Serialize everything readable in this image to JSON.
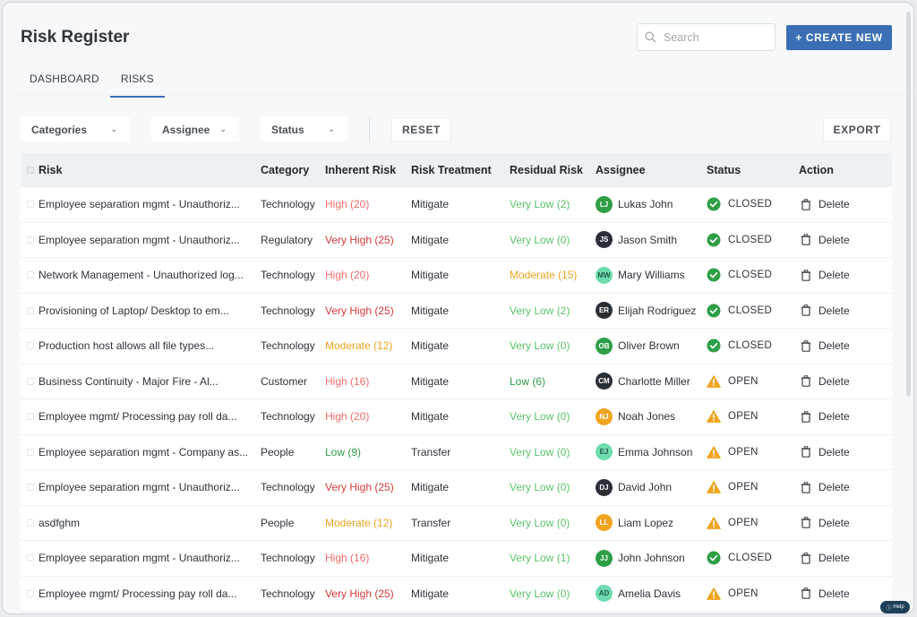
{
  "app": {
    "title": "Risk Register",
    "search": {
      "placeholder": "Search",
      "value": ""
    },
    "create_button": "+ CREATE NEW"
  },
  "tabs": [
    {
      "label": "DASHBOARD",
      "active": false
    },
    {
      "label": "RISKS",
      "active": true
    }
  ],
  "filters": {
    "categories": "Categories",
    "assignee": "Assignee",
    "status": "Status",
    "reset": "RESET",
    "export": "EXPORT"
  },
  "table": {
    "headers": {
      "risk": "Risk",
      "category": "Category",
      "inherent": "Inherent Risk",
      "treatment": "Risk Treatment",
      "residual": "Residual Risk",
      "assignee": "Assignee",
      "status": "Status",
      "action": "Action"
    },
    "rows": [
      {
        "risk": "Employee separation mgmt - Unauthoriz...",
        "category": "Technology",
        "inherent": "High (20)",
        "treatment": "Mitigate",
        "residual": "Very Low (2)",
        "initials": "LJ",
        "assignee": "Lukas John",
        "status": "CLOSED",
        "action": "Delete"
      },
      {
        "risk": "Employee separation mgmt - Unauthoriz...",
        "category": "Regulatory",
        "inherent": "Very High (25)",
        "treatment": "Mitigate",
        "residual": "Very Low (0)",
        "initials": "JS",
        "assignee": "Jason Smith",
        "status": "CLOSED",
        "action": "Delete"
      },
      {
        "risk": "Network Management - Unauthorized log...",
        "category": "Technology",
        "inherent": "High (20)",
        "treatment": "Mitigate",
        "residual": "Moderate (15)",
        "initials": "MW",
        "assignee": "Mary Williams",
        "status": "CLOSED",
        "action": "Delete"
      },
      {
        "risk": "Provisioning of Laptop/ Desktop to em...",
        "category": "Technology",
        "inherent": "Very High (25)",
        "treatment": "Mitigate",
        "residual": "Very Low (2)",
        "initials": "ER",
        "assignee": "Elijah Rodriguez",
        "status": "CLOSED",
        "action": "Delete"
      },
      {
        "risk": "Production host allows all file types...",
        "category": "Technology",
        "inherent": "Moderate (12)",
        "treatment": "Mitigate",
        "residual": "Very Low (0)",
        "initials": "OB",
        "assignee": "Oliver Brown",
        "status": "CLOSED",
        "action": "Delete"
      },
      {
        "risk": "Business Continuity - Major Fire - Al...",
        "category": "Customer",
        "inherent": "High (16)",
        "treatment": "Mitigate",
        "residual": "Low (6)",
        "initials": "CM",
        "assignee": "Charlotte Miller",
        "status": "OPEN",
        "action": "Delete"
      },
      {
        "risk": "Employee mgmt/ Processing pay roll da...",
        "category": "Technology",
        "inherent": "High (20)",
        "treatment": "Mitigate",
        "residual": "Very Low (0)",
        "initials": "NJ",
        "assignee": "Noah Jones",
        "status": "OPEN",
        "action": "Delete"
      },
      {
        "risk": "Employee separation mgmt - Company as...",
        "category": "People",
        "inherent": "Low (9)",
        "treatment": "Transfer",
        "residual": "Very Low (0)",
        "initials": "EJ",
        "assignee": "Emma Johnson",
        "status": "OPEN",
        "action": "Delete"
      },
      {
        "risk": "Employee separation mgmt - Unauthoriz...",
        "category": "Technology",
        "inherent": "Very High (25)",
        "treatment": "Mitigate",
        "residual": "Very Low (0)",
        "initials": "DJ",
        "assignee": "David John",
        "status": "OPEN",
        "action": "Delete"
      },
      {
        "risk": "asdfghm",
        "category": "People",
        "inherent": "Moderate (12)",
        "treatment": "Transfer",
        "residual": "Very Low (0)",
        "initials": "LL",
        "assignee": "Liam Lopez",
        "status": "OPEN",
        "action": "Delete"
      },
      {
        "risk": "Employee separation mgmt - Unauthoriz...",
        "category": "Technology",
        "inherent": "High (16)",
        "treatment": "Mitigate",
        "residual": "Very Low (1)",
        "initials": "JJ",
        "assignee": "John Johnson",
        "status": "CLOSED",
        "action": "Delete"
      },
      {
        "risk": "Employee mgmt/ Processing pay roll da...",
        "category": "Technology",
        "inherent": "Very High (25)",
        "treatment": "Mitigate",
        "residual": "Very Low (0)",
        "initials": "AD",
        "assignee": "Amelia Davis",
        "status": "OPEN",
        "action": "Delete"
      }
    ]
  },
  "help": {
    "label": "Help"
  },
  "colors": {
    "accent": "#3a6fb5",
    "very_high": "#d93a3a",
    "high": "#f06b6b",
    "moderate": "#f0a521",
    "low": "#2e9e47",
    "very_low": "#5cc46b",
    "closed": "#2e9e47",
    "open": "#f0a521",
    "avatar_green": "#2e9e47",
    "avatar_dark": "#2a2f36",
    "avatar_mint": "#6fdcb0",
    "avatar_orange": "#f0a521"
  }
}
